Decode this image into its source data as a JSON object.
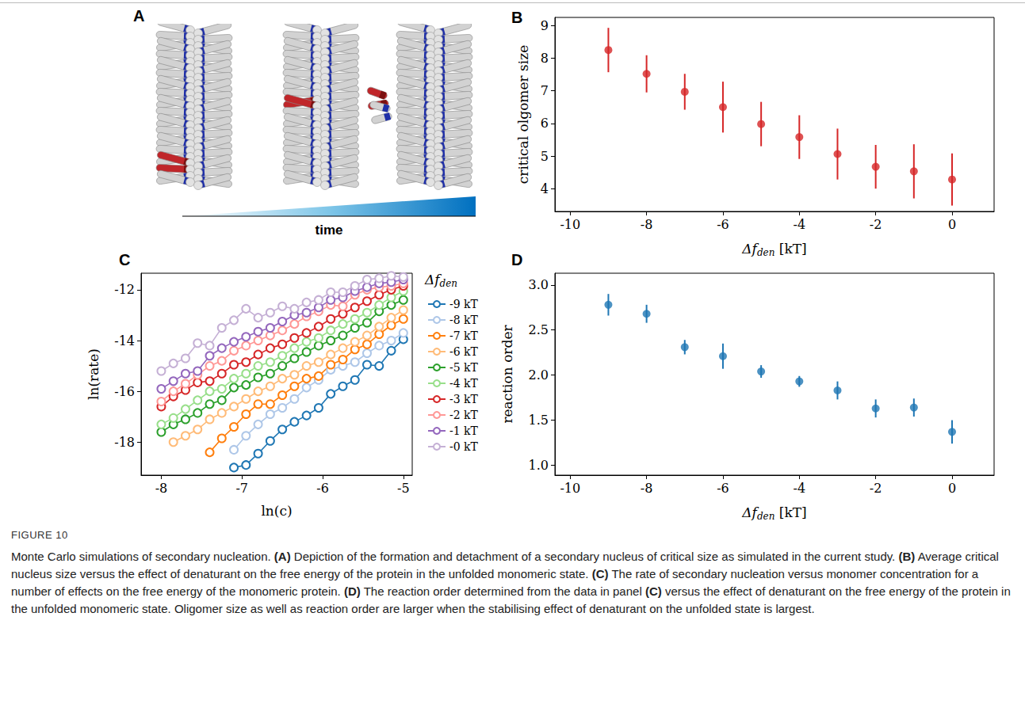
{
  "figure": {
    "label": "FIGURE 10",
    "caption": "Monte Carlo simulations of secondary nucleation. (A) Depiction of the formation and detachment of a secondary nucleus of critical size as simulated in the current study. (B) Average critical nucleus size versus the effect of denaturant on the free energy of the protein in the unfolded monomeric state. (C) The rate of secondary nucleation versus monomer concentration for a number of effects on the free energy of the monomeric protein. (D) The reaction order determined from the data in panel (C) versus the effect of denaturant on the free energy of the protein in the unfolded monomeric state. Oligomer size as well as reaction order are larger when the stabilising effect of denaturant on the unfolded state is largest."
  },
  "panel_a": {
    "letter": "A",
    "time_label": "time"
  },
  "chart_data": [
    {
      "letter": "B",
      "type": "scatter",
      "xlabel": [
        {
          "text": "Δf",
          "style": "italic"
        },
        {
          "text": "den",
          "style": "sub"
        },
        {
          "text": " [kT]",
          "style": "normal"
        }
      ],
      "ylabel": "critical olgomer size",
      "x": [
        -9,
        -8,
        -7,
        -6,
        -5,
        -4,
        -3,
        -2,
        -1,
        0
      ],
      "values": [
        8.25,
        7.52,
        6.97,
        6.5,
        5.98,
        5.58,
        5.06,
        4.67,
        4.53,
        4.28
      ],
      "errors": [
        0.68,
        0.57,
        0.55,
        0.78,
        0.68,
        0.67,
        0.78,
        0.67,
        0.83,
        0.8
      ],
      "color": "#d62728",
      "marker": "circle",
      "xlim": [
        -10.4,
        1.1
      ],
      "xticks": [
        -10,
        -8,
        -6,
        -4,
        -2,
        0
      ],
      "ylim": [
        3.3,
        9.25
      ],
      "yticks": [
        4,
        5,
        6,
        7,
        8,
        9
      ],
      "grid": false
    },
    {
      "letter": "C",
      "type": "line",
      "xlabel": "ln(c)",
      "ylabel": "ln(rate)",
      "legend": "right",
      "legend_title": [
        {
          "text": "Δf",
          "style": "italic"
        },
        {
          "text": "den",
          "style": "sub"
        }
      ],
      "marker": "open_circle",
      "x": [
        -8,
        -7.85,
        -7.7,
        -7.55,
        -7.4,
        -7.25,
        -7.1,
        -6.95,
        -6.8,
        -6.65,
        -6.5,
        -6.35,
        -6.2,
        -6.05,
        -5.9,
        -5.75,
        -5.6,
        -5.45,
        -5.3,
        -5.15,
        -5
      ],
      "series": [
        {
          "name": "-9 kT",
          "color": "#1f77b4",
          "values": [
            null,
            null,
            null,
            null,
            null,
            null,
            -19.0,
            -18.9,
            -18.45,
            -17.95,
            -17.5,
            -17.2,
            -16.95,
            -16.65,
            -16.1,
            -15.8,
            -15.55,
            -14.95,
            -15.0,
            -14.4,
            -13.95
          ]
        },
        {
          "name": "-8 kT",
          "color": "#aec7e8",
          "values": [
            null,
            null,
            null,
            null,
            null,
            null,
            -18.3,
            -17.75,
            -17.3,
            -16.9,
            -16.65,
            -16.3,
            -15.85,
            -15.55,
            -15.15,
            -15.0,
            -14.85,
            -14.5,
            -14.2,
            -14.0,
            -13.7
          ]
        },
        {
          "name": "-7 kT",
          "color": "#ff7f0e",
          "values": [
            null,
            null,
            null,
            null,
            -18.4,
            -17.85,
            -17.4,
            -16.9,
            -16.5,
            -16.5,
            -16.15,
            -15.8,
            -15.5,
            -15.4,
            -14.95,
            -14.75,
            -14.35,
            -14.15,
            -13.75,
            -13.4,
            -13.15
          ]
        },
        {
          "name": "-6 kT",
          "color": "#ffbb78",
          "values": [
            null,
            -18.0,
            -17.75,
            -17.5,
            -17.1,
            -16.85,
            -16.6,
            -16.3,
            -16.0,
            -15.8,
            -15.5,
            -15.35,
            -15.0,
            -14.85,
            -14.55,
            -14.3,
            -14.05,
            -13.8,
            -13.45,
            -13.1,
            -12.8
          ]
        },
        {
          "name": "-5 kT",
          "color": "#2ca02c",
          "values": [
            -17.6,
            -17.3,
            -17.1,
            -16.85,
            -16.5,
            -16.35,
            -15.85,
            -15.75,
            -15.45,
            -15.3,
            -15.0,
            -14.7,
            -14.45,
            -14.2,
            -14.0,
            -13.8,
            -13.5,
            -13.3,
            -12.85,
            -12.6,
            -12.4
          ]
        },
        {
          "name": "-4 kT",
          "color": "#98df8a",
          "values": [
            -17.3,
            -17.05,
            -16.7,
            -16.35,
            -16.0,
            -15.9,
            -15.5,
            -15.3,
            -15.0,
            -14.85,
            -14.6,
            -14.3,
            -14.05,
            -13.9,
            -13.6,
            -13.35,
            -13.15,
            -12.9,
            -12.6,
            -12.3,
            -12.05
          ]
        },
        {
          "name": "-3 kT",
          "color": "#d62728",
          "values": [
            -16.6,
            -16.2,
            -15.95,
            -15.65,
            -15.6,
            -15.3,
            -14.95,
            -14.85,
            -14.55,
            -14.3,
            -14.15,
            -13.9,
            -13.7,
            -13.45,
            -13.15,
            -12.95,
            -12.7,
            -12.45,
            -12.2,
            -12.0,
            -11.85
          ]
        },
        {
          "name": "-2 kT",
          "color": "#ff9896",
          "values": [
            -16.4,
            -16.0,
            -15.7,
            -15.35,
            -15.0,
            -14.8,
            -14.4,
            -14.2,
            -14.0,
            -13.8,
            -13.6,
            -13.35,
            -13.05,
            -12.85,
            -12.6,
            -12.65,
            -12.2,
            -12.0,
            -11.9,
            -11.85,
            -11.75
          ]
        },
        {
          "name": "-1 kT",
          "color": "#9467bd",
          "values": [
            -15.9,
            -15.6,
            -15.3,
            -15.2,
            -14.6,
            -14.3,
            -14.05,
            -13.85,
            -13.65,
            -13.5,
            -13.25,
            -13.0,
            -12.9,
            -12.7,
            -12.4,
            -12.3,
            -12.05,
            -11.9,
            -11.75,
            -11.7,
            -11.6
          ]
        },
        {
          "name": "-0 kT",
          "color": "#c5b0d5",
          "values": [
            -15.2,
            -14.9,
            -14.7,
            -14.1,
            -14.2,
            -13.5,
            -13.2,
            -12.75,
            -13.1,
            -12.9,
            -12.65,
            -12.75,
            -12.5,
            -12.4,
            -12.1,
            -12.1,
            -11.85,
            -11.6,
            -11.55,
            -11.45,
            -11.5
          ]
        }
      ],
      "xlim": [
        -8.25,
        -4.89
      ],
      "xticks": [
        -8,
        -7,
        -6,
        -5
      ],
      "ylim": [
        -19.3,
        -11.35
      ],
      "yticks": [
        -18,
        -16,
        -14,
        -12
      ],
      "grid": false
    },
    {
      "letter": "D",
      "type": "scatter",
      "xlabel": [
        {
          "text": "Δf",
          "style": "italic"
        },
        {
          "text": "den",
          "style": "sub"
        },
        {
          "text": " [kT]",
          "style": "normal"
        }
      ],
      "ylabel": "reaction order",
      "x": [
        -9,
        -8,
        -7,
        -6,
        -5,
        -4,
        -3,
        -2,
        -1,
        0
      ],
      "values": [
        2.78,
        2.68,
        2.31,
        2.21,
        2.04,
        1.93,
        1.83,
        1.63,
        1.64,
        1.37
      ],
      "errors": [
        0.12,
        0.1,
        0.08,
        0.14,
        0.07,
        0.06,
        0.1,
        0.1,
        0.1,
        0.13
      ],
      "color": "#1f77b4",
      "marker": "circle",
      "xlim": [
        -10.4,
        1.1
      ],
      "xticks": [
        -10,
        -8,
        -6,
        -4,
        -2,
        0
      ],
      "ylim": [
        0.89,
        3.13
      ],
      "yticks": [
        {
          "value": 1,
          "label": "1.0"
        },
        {
          "value": 1.5,
          "label": "1.5"
        },
        {
          "value": 2,
          "label": "2.0"
        },
        {
          "value": 2.5,
          "label": "2.5"
        },
        {
          "value": 3,
          "label": "3.0"
        }
      ],
      "grid": false
    }
  ]
}
